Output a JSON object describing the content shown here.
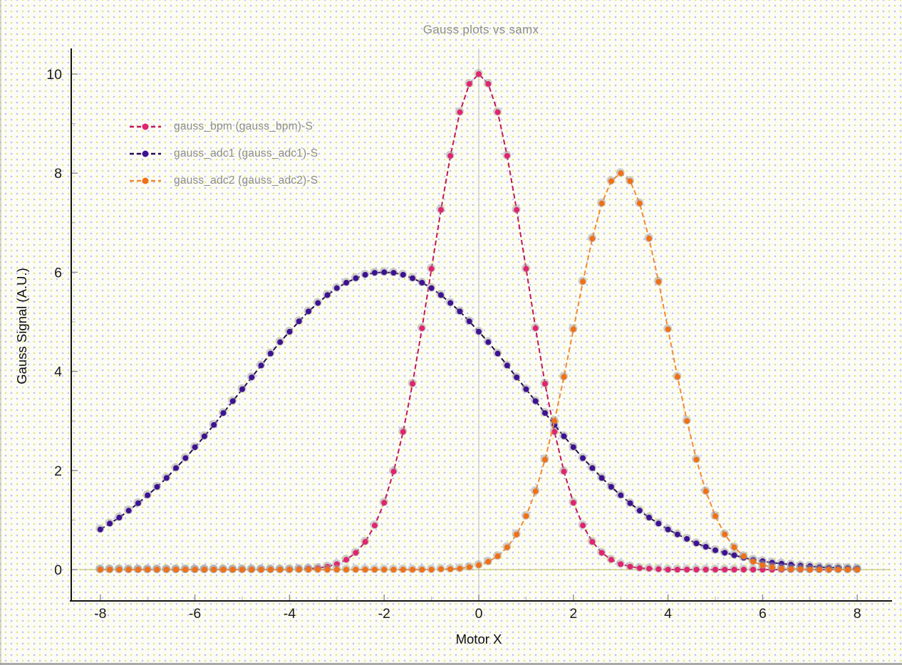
{
  "chart": {
    "title": "Gauss plots vs samx",
    "xlabel": "Motor X",
    "ylabel": "Gauss Signal (A.U.)"
  },
  "chart_data": {
    "type": "line",
    "title": "Gauss plots vs samx",
    "xlabel": "Motor X",
    "ylabel": "Gauss Signal (A.U.)",
    "xlim": [
      -8.6,
      8.7
    ],
    "ylim": [
      -0.65,
      10.7
    ],
    "x_ticks": [
      -8,
      -6,
      -4,
      -2,
      0,
      2,
      4,
      6,
      8
    ],
    "x_minor_ticks": [
      -7,
      -5,
      -3,
      -1,
      1,
      3,
      5,
      7
    ],
    "y_ticks": [
      0,
      2,
      4,
      6,
      8,
      10
    ],
    "y_minor_ticks": [
      1,
      3,
      5,
      7,
      9
    ],
    "grid": "single light-gray vertical line at x=0; olive horizontal line at y=0",
    "legend_position": "top-left, no frame",
    "marker_style": "filled circle with gray halo, dashed connecting line",
    "colors": {
      "axis": "#111111",
      "tick": "#8f8f8f",
      "tick_label": "#1a1a1a",
      "zero_vline": "#c9c9c9",
      "zero_hline": "#b3b34f",
      "marker_halo": "#9e9e9e",
      "title_text": "#8d8d8d",
      "legend_text": "#8d8d8d"
    },
    "x": [
      -8,
      -7.8,
      -7.6,
      -7.4,
      -7.2,
      -7,
      -6.8,
      -6.6,
      -6.4,
      -6.2,
      -6,
      -5.8,
      -5.6,
      -5.4,
      -5.2,
      -5,
      -4.8,
      -4.6,
      -4.4,
      -4.2,
      -4,
      -3.8,
      -3.6,
      -3.4,
      -3.2,
      -3,
      -2.8,
      -2.6,
      -2.4,
      -2.2,
      -2,
      -1.8,
      -1.6,
      -1.4,
      -1.2,
      -1,
      -0.8,
      -0.6,
      -0.4,
      -0.2,
      0,
      0.2,
      0.4,
      0.6,
      0.8,
      1,
      1.2,
      1.4,
      1.6,
      1.8,
      2,
      2.2,
      2.4,
      2.6,
      2.8,
      3,
      3.2,
      3.4,
      3.6,
      3.8,
      4,
      4.2,
      4.4,
      4.6,
      4.8,
      5,
      5.2,
      5.4,
      5.6,
      5.8,
      6,
      6.2,
      6.4,
      6.6,
      6.8,
      7,
      7.2,
      7.4,
      7.6,
      7.8,
      8
    ],
    "series": [
      {
        "name": "gauss_bpm (gauss_bpm)-S",
        "color": "#E0246E",
        "line_color": "#C2185B",
        "gaussian": {
          "amplitude": 10,
          "center": 0,
          "sigma": 1
        },
        "values": [
          0,
          0,
          0,
          0,
          0,
          0,
          0,
          0,
          0,
          0,
          0,
          0,
          0,
          0,
          0,
          0,
          0,
          0,
          0,
          0,
          0,
          0.01,
          0.02,
          0.03,
          0.06,
          0.11,
          0.2,
          0.34,
          0.56,
          0.89,
          1.35,
          1.98,
          2.78,
          3.75,
          4.87,
          6.07,
          7.26,
          8.35,
          9.23,
          9.8,
          10,
          9.8,
          9.23,
          8.35,
          7.26,
          6.07,
          4.87,
          3.75,
          2.78,
          1.98,
          1.35,
          0.89,
          0.56,
          0.34,
          0.2,
          0.11,
          0.06,
          0.03,
          0.02,
          0.01,
          0,
          0,
          0,
          0,
          0,
          0,
          0,
          0,
          0,
          0,
          0,
          0,
          0,
          0,
          0,
          0,
          0,
          0,
          0,
          0,
          0
        ]
      },
      {
        "name": "gauss_adc1 (gauss_adc1)-S",
        "color": "#3D1292",
        "line_color": "#25094E",
        "gaussian": {
          "amplitude": 6,
          "center": -2,
          "sigma": 3
        },
        "values": [
          0.81,
          0.93,
          1.05,
          1.19,
          1.34,
          1.5,
          1.67,
          1.85,
          2.05,
          2.25,
          2.47,
          2.69,
          2.92,
          3.16,
          3.4,
          3.64,
          3.88,
          4.12,
          4.36,
          4.59,
          4.8,
          5.01,
          5.21,
          5.38,
          5.54,
          5.68,
          5.79,
          5.88,
          5.95,
          5.99,
          6,
          5.99,
          5.95,
          5.88,
          5.79,
          5.68,
          5.54,
          5.38,
          5.21,
          5.01,
          4.8,
          4.59,
          4.36,
          4.12,
          3.88,
          3.64,
          3.4,
          3.16,
          2.92,
          2.69,
          2.47,
          2.25,
          2.05,
          1.85,
          1.67,
          1.5,
          1.34,
          1.19,
          1.05,
          0.93,
          0.81,
          0.71,
          0.62,
          0.53,
          0.46,
          0.39,
          0.34,
          0.29,
          0.24,
          0.2,
          0.17,
          0.14,
          0.12,
          0.1,
          0.08,
          0.07,
          0.05,
          0.04,
          0.04,
          0.03,
          0.02
        ]
      },
      {
        "name": "gauss_adc2 (gauss_adc2)-S",
        "color": "#F07018",
        "line_color": "#F18A34",
        "gaussian": {
          "amplitude": 8,
          "center": 3,
          "sigma": 1
        },
        "values": [
          0,
          0,
          0,
          0,
          0,
          0,
          0,
          0,
          0,
          0,
          0,
          0,
          0,
          0,
          0,
          0,
          0,
          0,
          0,
          0,
          0,
          0,
          0,
          0,
          0,
          0,
          0,
          0,
          0,
          0,
          0,
          0,
          0,
          0,
          0,
          0,
          0.01,
          0.01,
          0.02,
          0.05,
          0.09,
          0.16,
          0.27,
          0.45,
          0.71,
          1.08,
          1.58,
          2.22,
          3,
          3.89,
          4.85,
          5.81,
          6.68,
          7.39,
          7.84,
          8,
          7.84,
          7.39,
          6.68,
          5.81,
          4.85,
          3.89,
          3,
          2.22,
          1.58,
          1.08,
          0.71,
          0.45,
          0.27,
          0.16,
          0.09,
          0.05,
          0.02,
          0.01,
          0.01,
          0,
          0,
          0,
          0,
          0,
          0
        ]
      }
    ]
  }
}
